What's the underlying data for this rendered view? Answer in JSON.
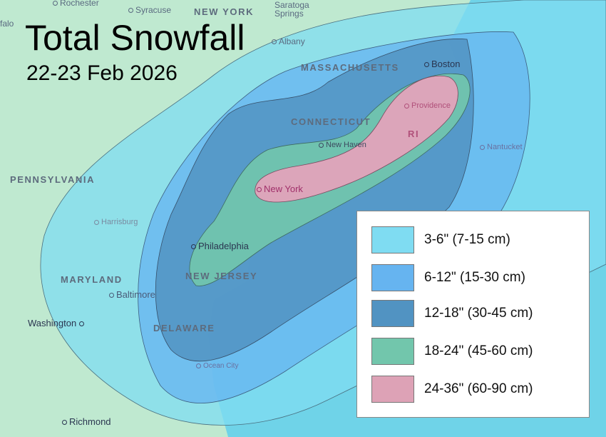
{
  "title": "Total Snowfall",
  "subtitle": "22-23 Feb 2026",
  "colors": {
    "land": "#bfe9d0",
    "ocean": "#6fd3e8"
  },
  "states": [
    {
      "id": "new-york",
      "label": "NEW YORK"
    },
    {
      "id": "pennsylvania",
      "label": "PENNSYLVANIA"
    },
    {
      "id": "massachusetts",
      "label": "MASSACHUSETTS"
    },
    {
      "id": "connecticut",
      "label": "CONNECTICUT"
    },
    {
      "id": "maryland",
      "label": "MARYLAND"
    },
    {
      "id": "new-jersey",
      "label": "NEW JERSEY"
    },
    {
      "id": "delaware",
      "label": "DELAWARE"
    },
    {
      "id": "rhode-island",
      "label": "RI"
    }
  ],
  "cities": [
    {
      "id": "rochester",
      "label": "Rochester"
    },
    {
      "id": "syracuse",
      "label": "Syracuse"
    },
    {
      "id": "buffalo",
      "label": "falo"
    },
    {
      "id": "saratoga-springs",
      "label": "Saratoga Springs"
    },
    {
      "id": "albany",
      "label": "Albany"
    },
    {
      "id": "boston",
      "label": "Boston"
    },
    {
      "id": "providence",
      "label": "Providence"
    },
    {
      "id": "new-haven",
      "label": "New Haven"
    },
    {
      "id": "nantucket",
      "label": "Nantucket"
    },
    {
      "id": "new-york-city",
      "label": "New York"
    },
    {
      "id": "harrisburg",
      "label": "Harrisburg"
    },
    {
      "id": "philadelphia",
      "label": "Philadelphia"
    },
    {
      "id": "baltimore",
      "label": "Baltimore"
    },
    {
      "id": "washington",
      "label": "Washington"
    },
    {
      "id": "ocean-city",
      "label": "Ocean City"
    },
    {
      "id": "richmond",
      "label": "Richmond"
    }
  ],
  "legend": [
    {
      "label": "3-6\" (7-15 cm)",
      "color": "#7fdcf2"
    },
    {
      "label": "6-12\" (15-30 cm)",
      "color": "#66b4f0"
    },
    {
      "label": "12-18\" (30-45 cm)",
      "color": "#5193c2"
    },
    {
      "label": "18-24\" (45-60 cm)",
      "color": "#72c6ac"
    },
    {
      "label": "24-36\" (60-90 cm)",
      "color": "#dda2b6"
    }
  ]
}
